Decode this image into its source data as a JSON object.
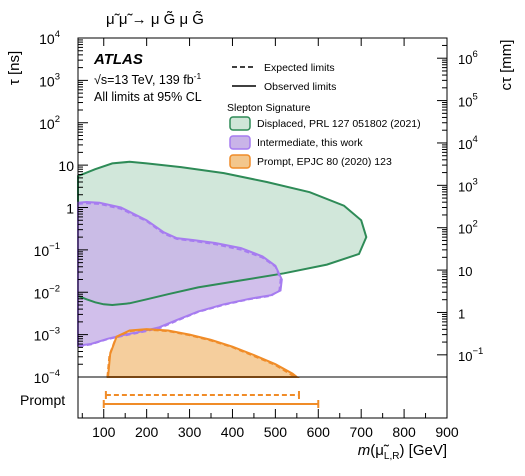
{
  "chart_data": {
    "type": "area",
    "process": "μ̃ μ̃ → μ G̃ μ G̃",
    "experiment": "ATLAS",
    "energy": "√s=13 TeV, 139 fb",
    "energy_exp": "-1",
    "cl": "All limits at 95% CL",
    "line_legend": [
      {
        "label": "Expected limits",
        "style": "dashed"
      },
      {
        "label": "Observed limits",
        "style": "solid"
      }
    ],
    "legend_title": "Slepton Signature",
    "xlabel_italic": "m",
    "xlabel_rest": "(μ̃",
    "xlabel_sub": "L,R",
    "xlabel_unit": ") [GeV]",
    "ylabel_left": "τ [ns]",
    "ylabel_right": "cτ [mm]",
    "xlim": [
      40,
      900
    ],
    "ylim": [
      0.0001,
      10000
    ],
    "yscale": "log",
    "x_ticks": [
      "100",
      "200",
      "300",
      "400",
      "500",
      "600",
      "700",
      "800",
      "900"
    ],
    "y_ticks_left": [
      {
        "v": 10000,
        "b": "10",
        "e": "4"
      },
      {
        "v": 1000,
        "b": "10",
        "e": "3"
      },
      {
        "v": 100,
        "b": "10",
        "e": "2"
      },
      {
        "v": 10,
        "b": "10",
        "e": ""
      },
      {
        "v": 1,
        "b": "1",
        "e": ""
      },
      {
        "v": 0.1,
        "b": "10",
        "e": "−1"
      },
      {
        "v": 0.01,
        "b": "10",
        "e": "−2"
      },
      {
        "v": 0.001,
        "b": "10",
        "e": "−3"
      },
      {
        "v": 0.0001,
        "b": "10",
        "e": "−4"
      }
    ],
    "y_ticks_right": [
      {
        "tau": 3335.6,
        "b": "10",
        "e": "6"
      },
      {
        "tau": 333.56,
        "b": "10",
        "e": "5"
      },
      {
        "tau": 33.356,
        "b": "10",
        "e": "4"
      },
      {
        "tau": 3.3356,
        "b": "10",
        "e": "3"
      },
      {
        "tau": 0.33356,
        "b": "10",
        "e": "2"
      },
      {
        "tau": 0.033356,
        "b": "10",
        "e": ""
      },
      {
        "tau": 0.0033356,
        "b": "1",
        "e": ""
      },
      {
        "tau": 0.00033356,
        "b": "10",
        "e": "−1"
      }
    ],
    "series": [
      {
        "name": "Displaced, PRL 127 051802 (2021)",
        "fill": "#cfe6d8",
        "line": "#2e8b57",
        "observed": [
          [
            40,
            5.5
          ],
          [
            80,
            8
          ],
          [
            120,
            11
          ],
          [
            160,
            12
          ],
          [
            200,
            11
          ],
          [
            280,
            9
          ],
          [
            380,
            6.5
          ],
          [
            480,
            4
          ],
          [
            580,
            2.3
          ],
          [
            660,
            1.1
          ],
          [
            700,
            0.5
          ],
          [
            712,
            0.2
          ],
          [
            695,
            0.08
          ],
          [
            620,
            0.045
          ],
          [
            520,
            0.028
          ],
          [
            420,
            0.019
          ],
          [
            320,
            0.013
          ],
          [
            250,
            0.009
          ],
          [
            200,
            0.0068
          ],
          [
            160,
            0.0055
          ],
          [
            120,
            0.005
          ],
          [
            100,
            0.0052
          ],
          [
            80,
            0.0058
          ],
          [
            60,
            0.0068
          ],
          [
            40,
            0.0082
          ]
        ],
        "expected": []
      },
      {
        "name": "Intermediate, this work",
        "fill": "#c9b4e8",
        "line": "#a67cf0",
        "observed": [
          [
            40,
            1.3
          ],
          [
            60,
            1.35
          ],
          [
            90,
            1.3
          ],
          [
            140,
            1.0
          ],
          [
            200,
            0.5
          ],
          [
            240,
            0.26
          ],
          [
            270,
            0.19
          ],
          [
            310,
            0.17
          ],
          [
            360,
            0.145
          ],
          [
            420,
            0.11
          ],
          [
            470,
            0.07
          ],
          [
            500,
            0.042
          ],
          [
            515,
            0.02
          ],
          [
            512,
            0.011
          ],
          [
            490,
            0.0085
          ],
          [
            440,
            0.007
          ],
          [
            380,
            0.0052
          ],
          [
            320,
            0.0035
          ],
          [
            270,
            0.0022
          ],
          [
            230,
            0.0015
          ],
          [
            190,
            0.0012
          ],
          [
            150,
            0.001
          ],
          [
            110,
            0.0008
          ],
          [
            70,
            0.0006
          ],
          [
            40,
            0.00055
          ]
        ],
        "expected": [
          [
            40,
            1.2
          ],
          [
            60,
            1.25
          ],
          [
            90,
            1.2
          ],
          [
            140,
            0.92
          ],
          [
            200,
            0.47
          ],
          [
            240,
            0.24
          ],
          [
            270,
            0.18
          ],
          [
            310,
            0.16
          ],
          [
            360,
            0.135
          ],
          [
            420,
            0.1
          ],
          [
            470,
            0.065
          ],
          [
            500,
            0.04
          ],
          [
            512,
            0.02
          ],
          [
            509,
            0.011
          ],
          [
            490,
            0.0082
          ],
          [
            440,
            0.0068
          ],
          [
            380,
            0.005
          ],
          [
            320,
            0.0034
          ],
          [
            270,
            0.0021
          ],
          [
            230,
            0.0014
          ],
          [
            190,
            0.00115
          ],
          [
            150,
            0.00095
          ],
          [
            110,
            0.00078
          ],
          [
            70,
            0.00058
          ],
          [
            40,
            0.00052
          ]
        ]
      },
      {
        "name": "Prompt, EPJC 80 (2020) 123",
        "fill": "#f3c68c",
        "line": "#f08c28",
        "observed": [
          [
            110,
            0.0001
          ],
          [
            115,
            0.00035
          ],
          [
            130,
            0.0009
          ],
          [
            160,
            0.00125
          ],
          [
            200,
            0.00135
          ],
          [
            250,
            0.00125
          ],
          [
            300,
            0.001
          ],
          [
            350,
            0.00075
          ],
          [
            400,
            0.00052
          ],
          [
            450,
            0.00033
          ],
          [
            500,
            0.0002
          ],
          [
            540,
            0.00012
          ],
          [
            550,
            0.0001
          ]
        ],
        "expected": [
          [
            108,
            0.0001
          ],
          [
            113,
            0.00033
          ],
          [
            128,
            0.00085
          ],
          [
            160,
            0.0012
          ],
          [
            200,
            0.0013
          ],
          [
            250,
            0.0012
          ],
          [
            300,
            0.00096
          ],
          [
            350,
            0.00072
          ],
          [
            400,
            0.0005
          ],
          [
            450,
            0.00031
          ],
          [
            500,
            0.00019
          ],
          [
            535,
            0.000115
          ],
          [
            545,
            0.0001
          ]
        ]
      }
    ],
    "prompt_label": "Prompt",
    "prompt_limits": {
      "expected": [
        105,
        555
      ],
      "observed": [
        100,
        600
      ],
      "color": "#f08c28"
    }
  }
}
